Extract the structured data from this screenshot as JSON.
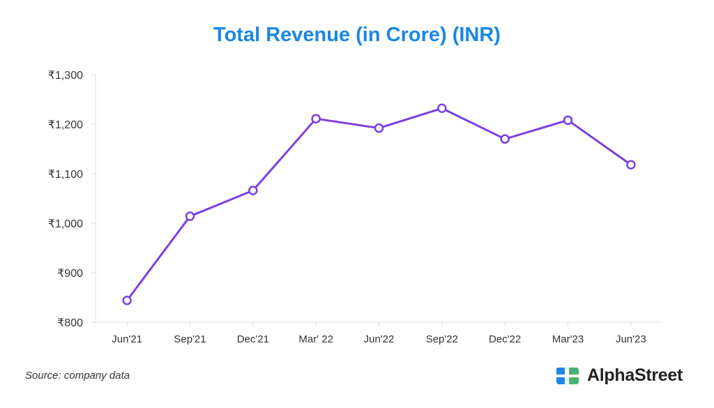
{
  "chart_data": {
    "type": "line",
    "title": "Total Revenue (in Crore) (INR)",
    "xlabel": "",
    "ylabel": "",
    "categories": [
      "Jun'21",
      "Sep'21",
      "Dec'21",
      "Mar' 22",
      "Jun'22",
      "Sep'22",
      "Dec'22",
      "Mar'23",
      "Jun'23"
    ],
    "series": [
      {
        "name": "Total Revenue",
        "values": [
          844,
          1014,
          1066,
          1211,
          1192,
          1232,
          1170,
          1208,
          1118
        ]
      }
    ],
    "ylim": [
      800,
      1300
    ],
    "yticks": [
      800,
      900,
      1000,
      1100,
      1200,
      1300
    ],
    "ytick_labels": [
      "₹800",
      "₹900",
      "₹1,000",
      "₹1,100",
      "₹1,200",
      "₹1,300"
    ],
    "grid": false,
    "color": "#7b3fe4"
  },
  "footer": {
    "source": "Source: company data",
    "logo_text": "AlphaStreet"
  },
  "colors": {
    "title": "#1a87e6",
    "logo_blue": "#1a87e6",
    "logo_green": "#4caf72"
  }
}
